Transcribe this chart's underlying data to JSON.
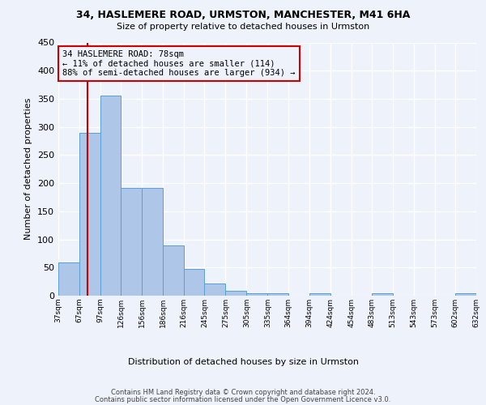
{
  "title1": "34, HASLEMERE ROAD, URMSTON, MANCHESTER, M41 6HA",
  "title2": "Size of property relative to detached houses in Urmston",
  "xlabel": "Distribution of detached houses by size in Urmston",
  "ylabel": "Number of detached properties",
  "footnote1": "Contains HM Land Registry data © Crown copyright and database right 2024.",
  "footnote2": "Contains public sector information licensed under the Open Government Licence v3.0.",
  "annotation_line1": "34 HASLEMERE ROAD: 78sqm",
  "annotation_line2": "← 11% of detached houses are smaller (114)",
  "annotation_line3": "88% of semi-detached houses are larger (934) →",
  "property_size": 78,
  "bin_edges": [
    37,
    67,
    97,
    126,
    156,
    186,
    216,
    245,
    275,
    305,
    335,
    364,
    394,
    424,
    454,
    483,
    513,
    543,
    573,
    602,
    632
  ],
  "bin_counts": [
    59,
    290,
    356,
    192,
    192,
    90,
    47,
    21,
    9,
    5,
    5,
    0,
    4,
    0,
    0,
    4,
    0,
    0,
    0,
    4
  ],
  "bar_color": "#aec6e8",
  "bar_edge_color": "#5a9fd4",
  "vline_color": "#cc0000",
  "annotation_box_edge": "#cc0000",
  "background_color": "#eef2fa",
  "grid_color": "#ffffff",
  "ylim": [
    0,
    450
  ],
  "yticks": [
    0,
    50,
    100,
    150,
    200,
    250,
    300,
    350,
    400,
    450
  ]
}
